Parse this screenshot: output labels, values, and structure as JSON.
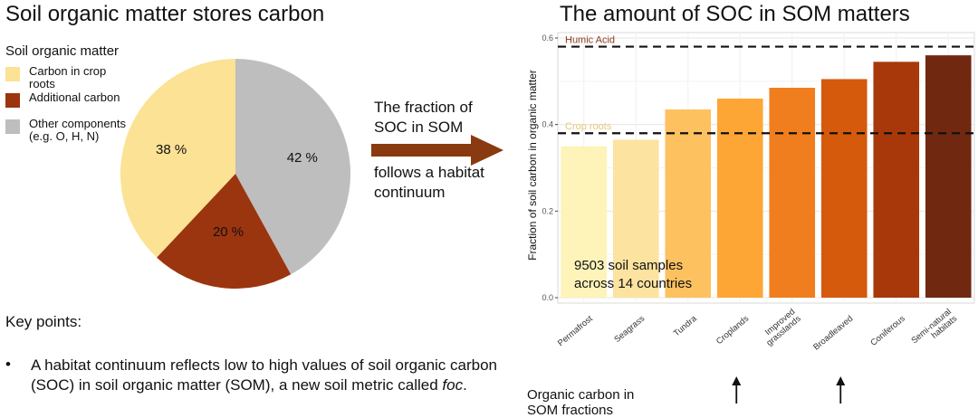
{
  "left_title": "Soil organic matter stores carbon",
  "right_title": "The amount of SOC in SOM matters",
  "legend": {
    "title": "Soil organic matter",
    "items": [
      {
        "label": "Carbon in crop roots",
        "color": "#FCE294"
      },
      {
        "label": "Additional carbon",
        "color": "#9B350F"
      },
      {
        "label": "Other components (e.g. O, H, N)",
        "color": "#BEBEBE"
      }
    ]
  },
  "arrow_text": {
    "line1": "The fraction of",
    "line2": "SOC in SOM",
    "line3": "follows a habitat",
    "line4": "continuum"
  },
  "key_points": {
    "title": "Key points:",
    "bullet_marker": "•",
    "bullet_text_a": "A habitat continuum reflects low to high values of soil organic carbon (SOC) in soil organic matter (SOM), a new soil metric called ",
    "bullet_text_em": "foc",
    "bullet_text_b": "."
  },
  "bottom_label": {
    "line1": "Organic carbon in",
    "line2": "SOM fractions"
  },
  "samples_text": {
    "line1": "9503 soil samples",
    "line2": "across 14 countries"
  },
  "chart_data": [
    {
      "type": "pie",
      "categories": [
        "Carbon in crop roots",
        "Additional carbon",
        "Other components (e.g. O, H, N)"
      ],
      "values": [
        38,
        20,
        42
      ],
      "value_labels": [
        "38 %",
        "20 %",
        "42 %"
      ],
      "colors": [
        "#FCE294",
        "#9B350F",
        "#BEBEBE"
      ],
      "start": "top, clockwise, 42 % first"
    },
    {
      "type": "bar",
      "categories": [
        "Permafrost",
        "Seagrass",
        "Tundra",
        "Croplands",
        "Improved grasslands",
        "Broadleaved",
        "Coniferous",
        "Semi-natural habitats"
      ],
      "tick_lines": [
        [
          "Permafrost"
        ],
        [
          "Seagrass"
        ],
        [
          "Tundra"
        ],
        [
          "Croplands"
        ],
        [
          "Improved",
          "grasslands"
        ],
        [
          "Broadleaved"
        ],
        [
          "Coniferous"
        ],
        [
          "Semi-natural",
          "habitats"
        ]
      ],
      "values": [
        0.35,
        0.365,
        0.435,
        0.46,
        0.485,
        0.505,
        0.545,
        0.56
      ],
      "colors": [
        "#FEF3B9",
        "#FDE3A0",
        "#FDC160",
        "#FDA635",
        "#F07E1E",
        "#D55A0C",
        "#A8380A",
        "#702810"
      ],
      "ylabel": "Fraction of soil carbon in organic matter",
      "ylim": [
        0,
        0.6
      ],
      "yticks": [
        0.0,
        0.2,
        0.4,
        0.6
      ],
      "ytick_labels": [
        "0.0",
        "0.2",
        "0.4",
        "0.6"
      ],
      "grid": true,
      "reference_lines": [
        {
          "label": "Humic Acid",
          "value": 0.58,
          "label_color": "#8B3A1A"
        },
        {
          "label": "Crop roots",
          "value": 0.38,
          "label_color": "#E8C77A"
        }
      ]
    }
  ]
}
